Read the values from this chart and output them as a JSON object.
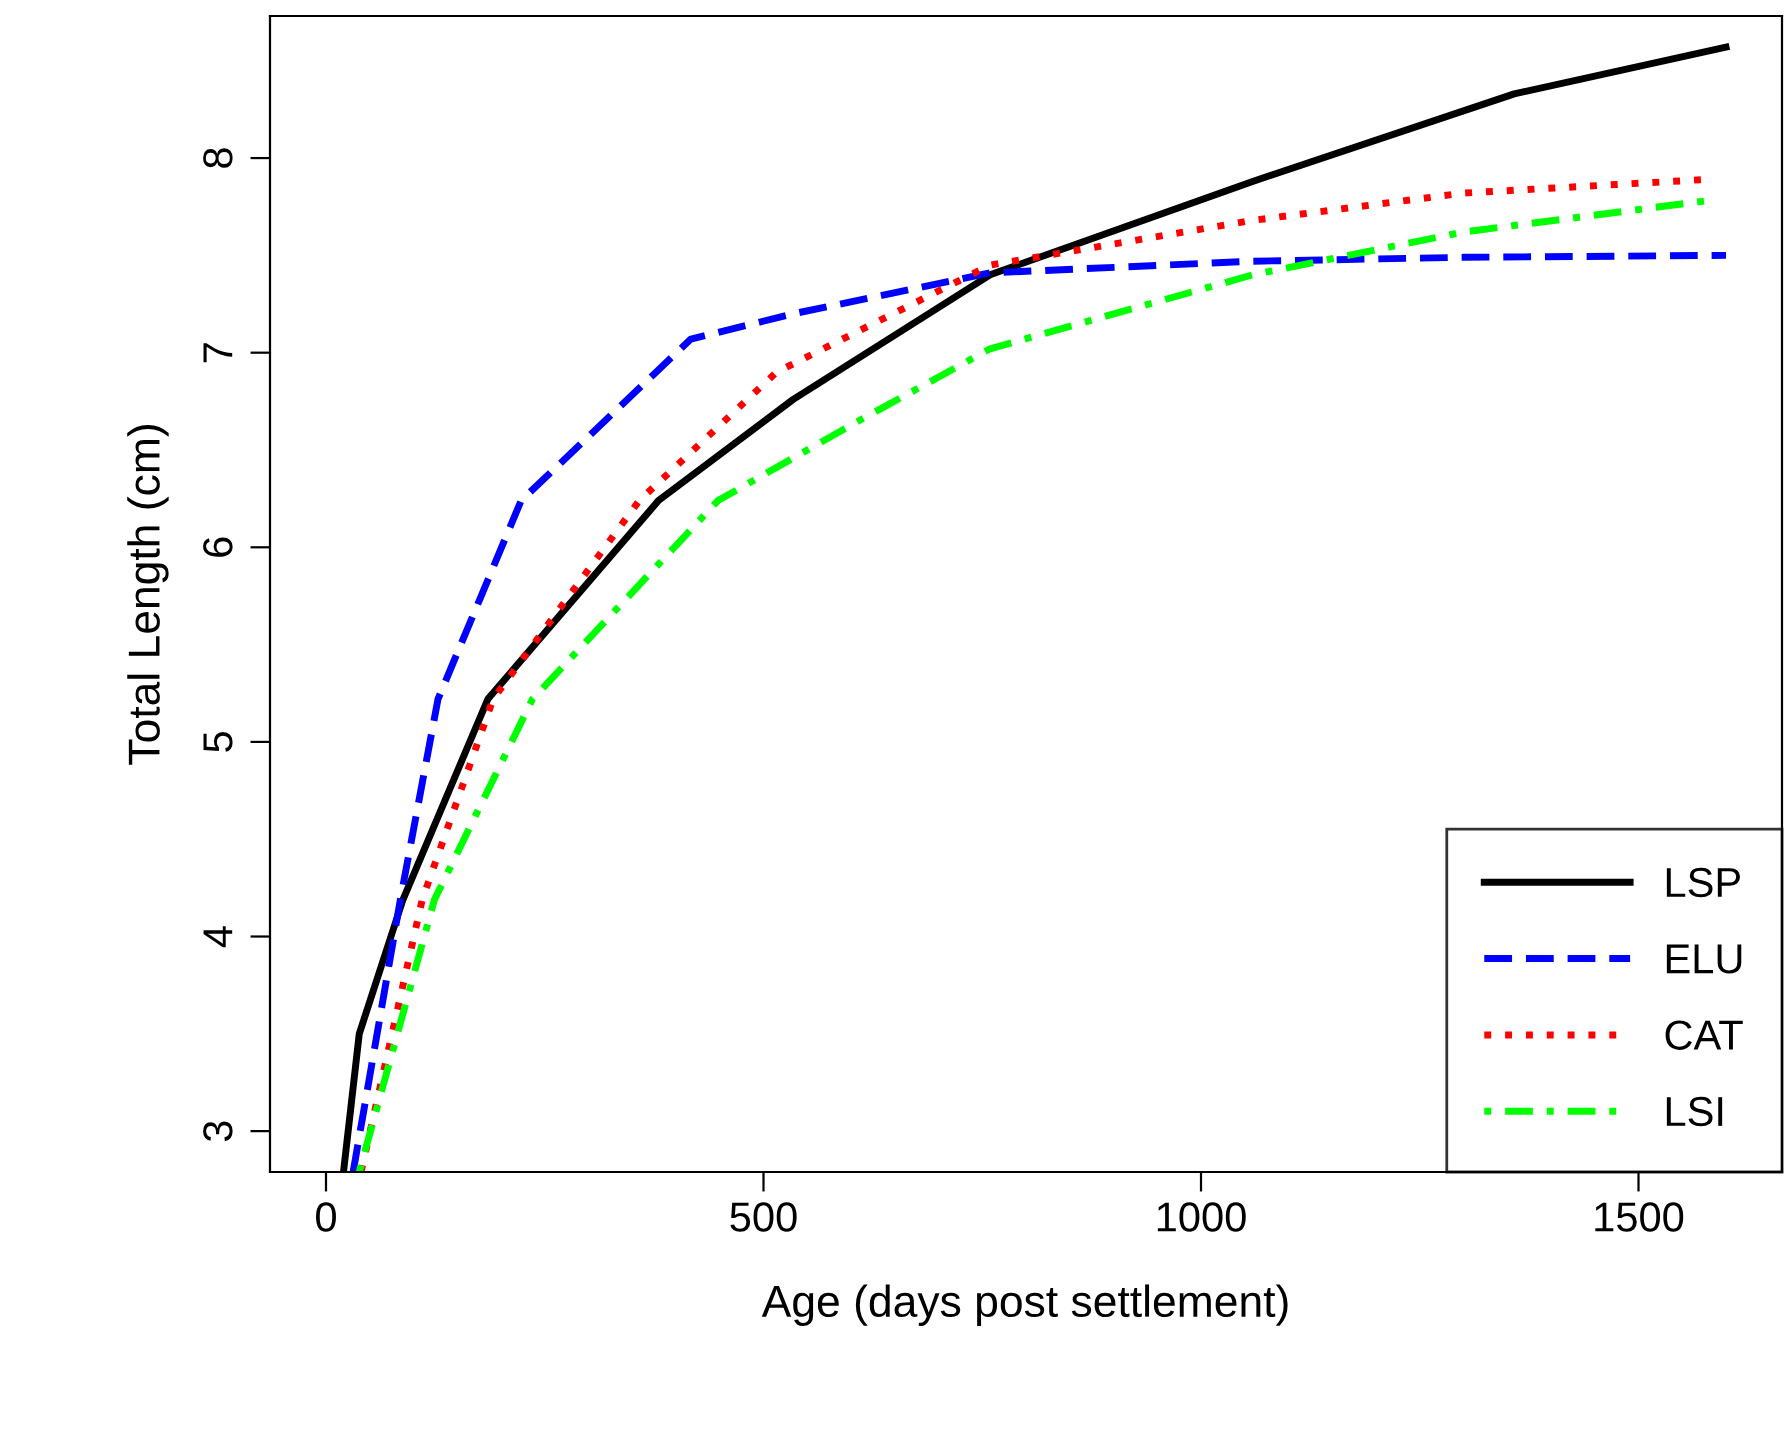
{
  "chart_data": {
    "type": "line",
    "xlabel": "Age (days post settlement)",
    "ylabel": "Total Length (cm)",
    "xlim": [
      -64,
      1664
    ],
    "ylim": [
      2.79,
      8.73
    ],
    "xticks": [
      0,
      500,
      1000,
      1500
    ],
    "yticks": [
      3,
      4,
      5,
      6,
      7,
      8
    ],
    "grid": false,
    "legend": "bottom right",
    "marker": "none",
    "series": [
      {
        "name": "LSP",
        "color": "#000000",
        "line_style": "solid",
        "x": [
          20,
          38,
          88,
          185,
          380,
          534,
          759,
          1059,
          1358,
          1600
        ],
        "values": [
          2.79,
          3.5,
          4.19,
          5.22,
          6.24,
          6.76,
          7.4,
          7.88,
          8.33,
          8.57
        ]
      },
      {
        "name": "ELU",
        "color": "#0000ff",
        "line_style": "dashed",
        "x": [
          31,
          85,
          128,
          223,
          417,
          534,
          759,
          1059,
          1300,
          1600
        ],
        "values": [
          2.79,
          4.19,
          5.22,
          6.24,
          7.07,
          7.2,
          7.41,
          7.47,
          7.49,
          7.5
        ]
      },
      {
        "name": "CAT",
        "color": "#ff0000",
        "line_style": "dotted",
        "x": [
          40,
          110,
          191,
          358,
          515,
          759,
          1059,
          1300,
          1577
        ],
        "values": [
          2.79,
          4.19,
          5.22,
          6.24,
          6.9,
          7.45,
          7.68,
          7.82,
          7.89
        ]
      },
      {
        "name": "LSI",
        "color": "#00ff00",
        "line_style": "dashdot",
        "x": [
          38,
          124,
          236,
          448,
          613,
          759,
          1059,
          1300,
          1577
        ],
        "values": [
          2.79,
          4.19,
          5.22,
          6.24,
          6.66,
          7.02,
          7.4,
          7.62,
          7.78
        ]
      }
    ]
  }
}
